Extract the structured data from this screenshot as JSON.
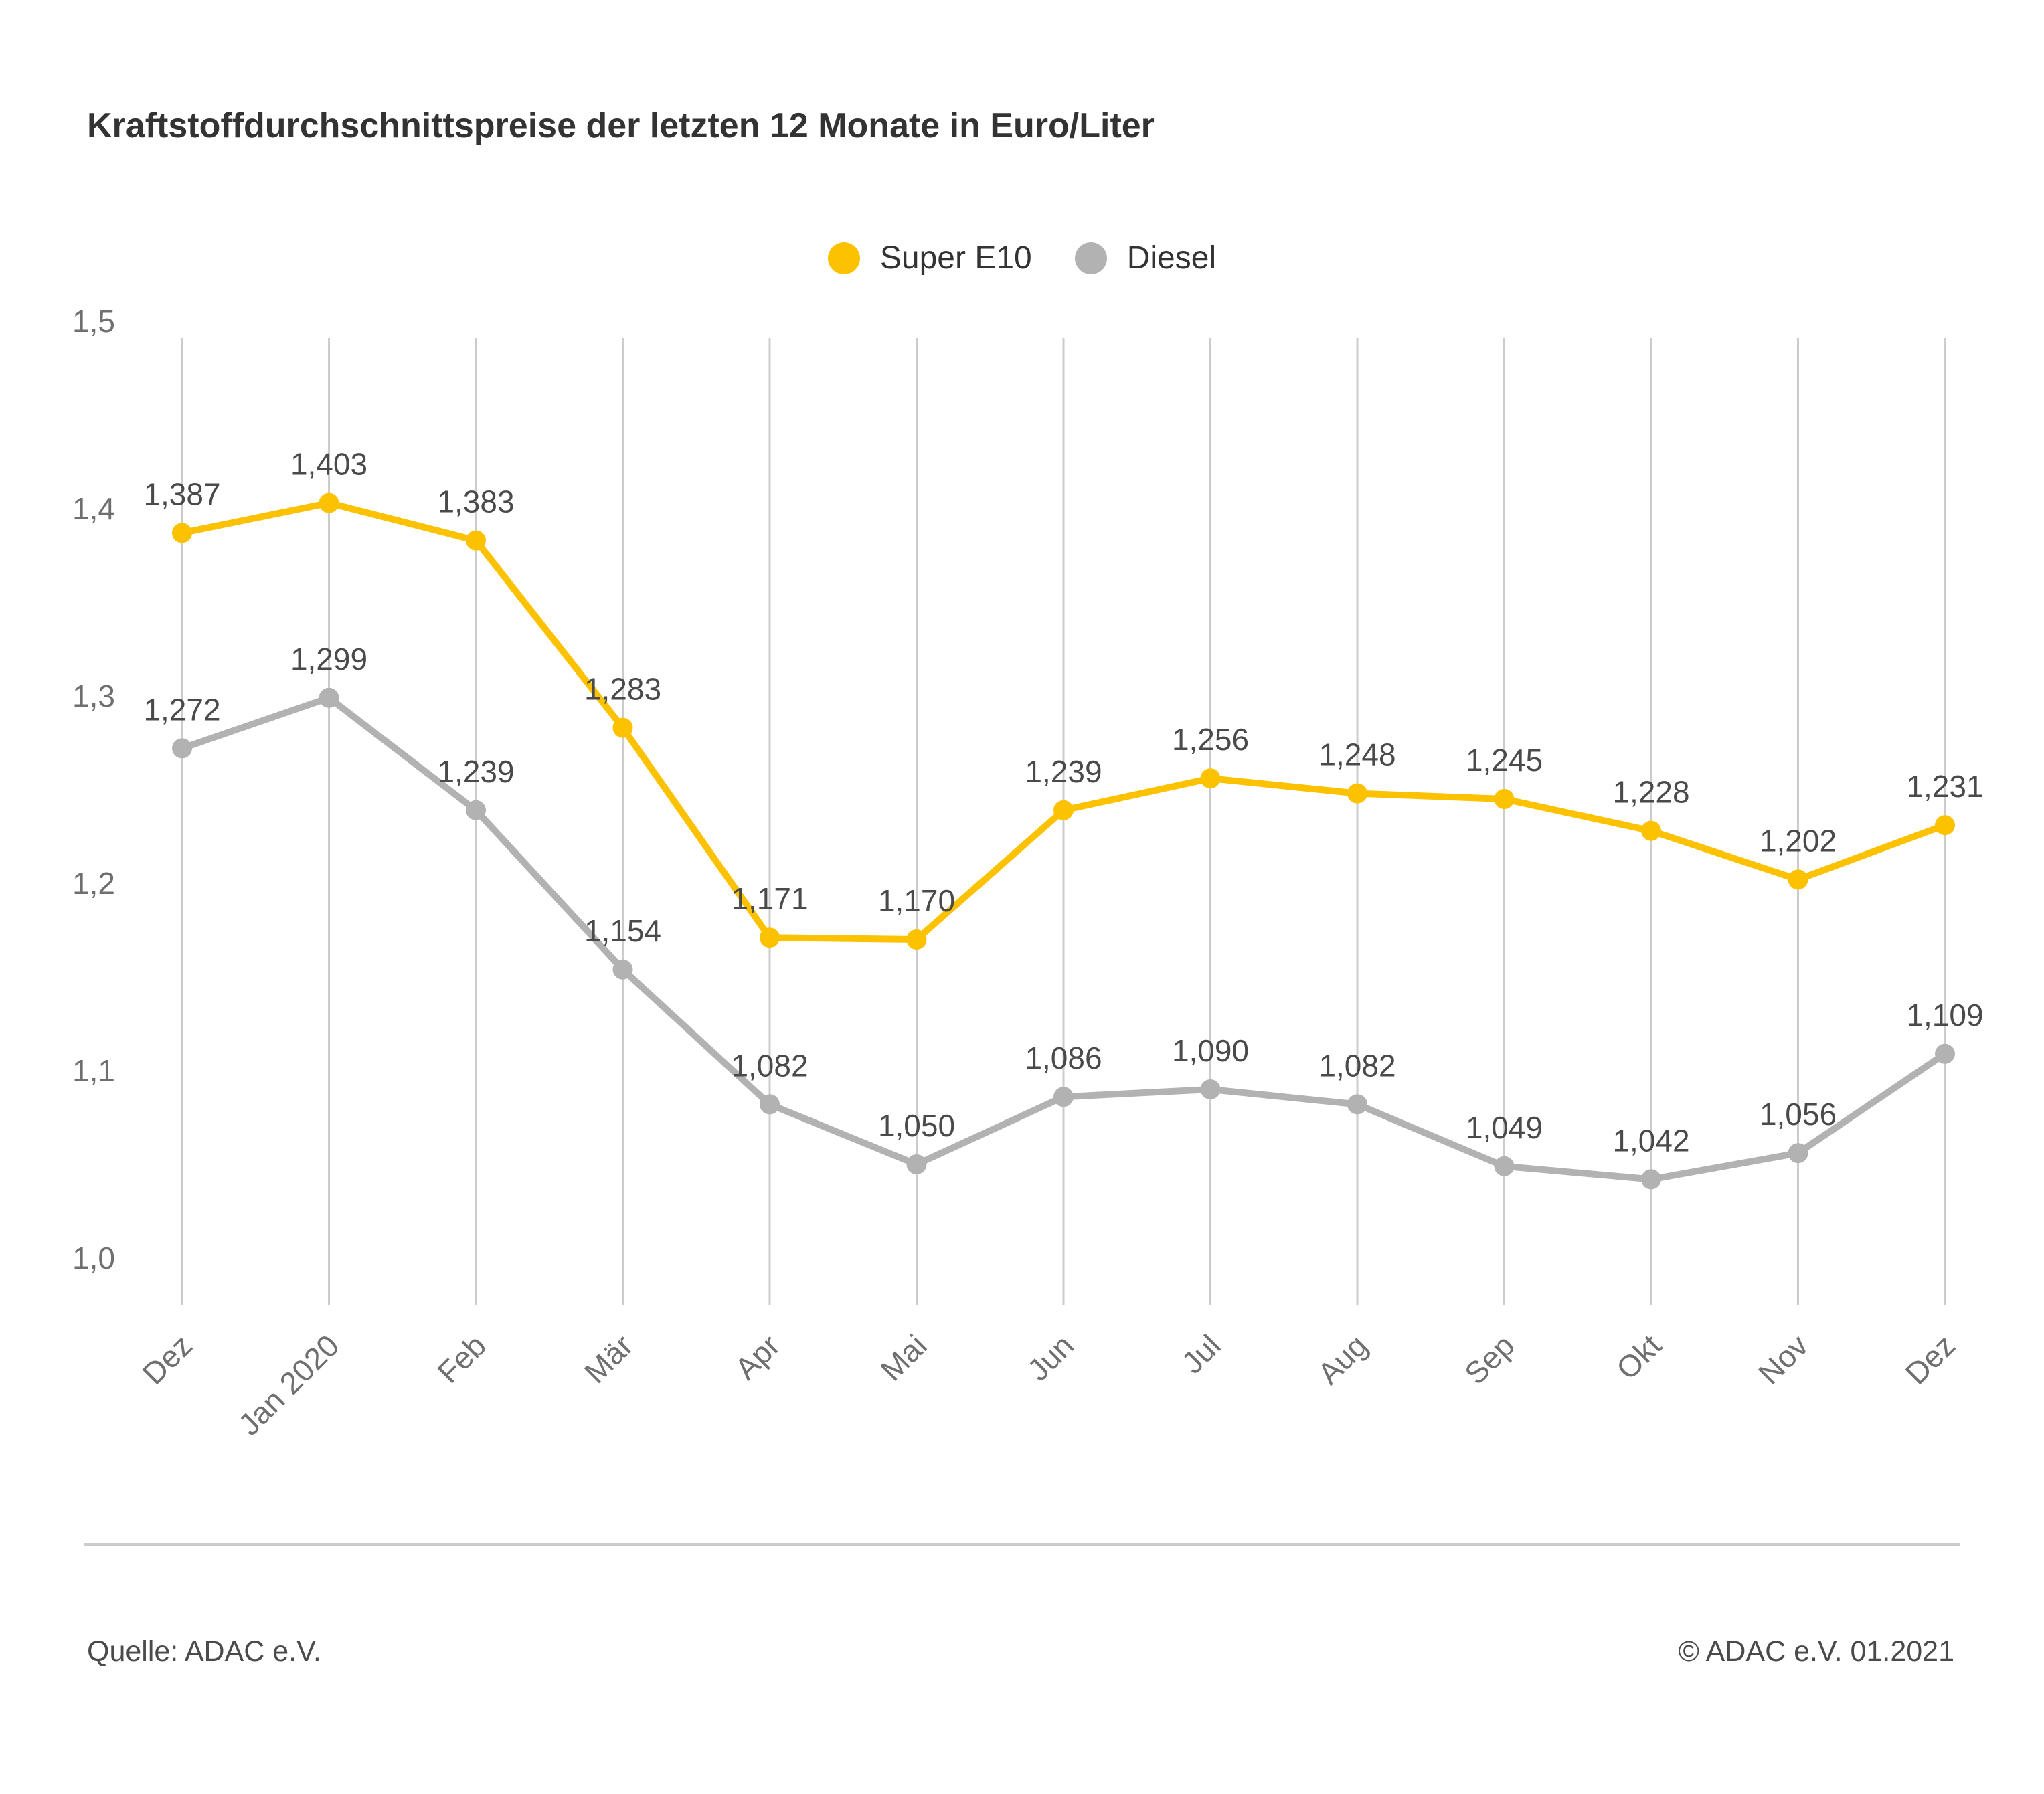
{
  "page": {
    "footer": {
      "source": "Quelle: ADAC e.V.",
      "copyright": "© ADAC e.V. 01.2021"
    }
  },
  "chart_data": {
    "type": "line",
    "title": "Kraftstoffdurchschnittspreise der letzten 12 Monate in Euro/Liter",
    "categories": [
      "Dez",
      "Jan 2020",
      "Feb",
      "Mär",
      "Apr",
      "Mai",
      "Jun",
      "Jul",
      "Aug",
      "Sep",
      "Okt",
      "Nov",
      "Dez"
    ],
    "series": [
      {
        "name": "Super E10",
        "color": "#FCC200",
        "values": [
          1.387,
          1.403,
          1.383,
          1.283,
          1.171,
          1.17,
          1.239,
          1.256,
          1.248,
          1.245,
          1.228,
          1.202,
          1.231
        ]
      },
      {
        "name": "Diesel",
        "color": "#B2B2B2",
        "values": [
          1.272,
          1.299,
          1.239,
          1.154,
          1.082,
          1.05,
          1.086,
          1.09,
          1.082,
          1.049,
          1.042,
          1.056,
          1.109
        ]
      }
    ],
    "ylabel": "",
    "xlabel": "",
    "ylim": [
      1.0,
      1.5
    ],
    "yticks": [
      1.5,
      1.4,
      1.3,
      1.2,
      1.1,
      1.0
    ],
    "ytick_labels": [
      "1,5",
      "1,4",
      "1,3",
      "1,2",
      "1,1",
      "1,0"
    ],
    "grid": "vertical-only",
    "gridline_color": "#CCCCCC",
    "legend_position": "top-center",
    "decimal_separator": ",",
    "value_decimals": 3,
    "value_labels_shown": true
  }
}
